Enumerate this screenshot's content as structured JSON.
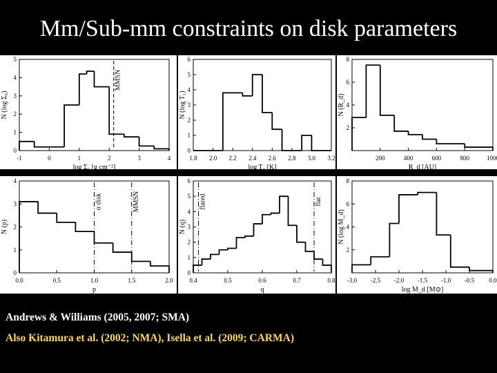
{
  "slide": {
    "title": "Mm/Sub-mm constraints on disk parameters",
    "caption_line1": "Andrews & Williams (2005, 2007; SMA)",
    "caption_line2": "Also Kitamura et al. (2002; NMA), Isella et al. (2009; CARMA)"
  },
  "colors": {
    "background": "#000000",
    "panel": "#ffffff",
    "ink": "#000000",
    "title": "#ffffff",
    "caption1": "#ffffff",
    "caption2": "#ffd84a"
  },
  "chart_data": [
    {
      "type": "histogram",
      "xlabel": "log Σ₀ [g cm⁻²]",
      "ylabel": "N (log Σ₀)",
      "xlim": [
        -1,
        4
      ],
      "ylim": [
        0,
        5
      ],
      "xticks": [
        "-1",
        "0",
        "1",
        "2",
        "3",
        "4"
      ],
      "yticks": [
        "0",
        "1",
        "2",
        "3",
        "4",
        "5"
      ],
      "bins": {
        "edges": [
          -1.0,
          -0.5,
          0.5,
          1.0,
          1.25,
          1.5,
          2.0,
          2.5,
          3.0,
          3.5,
          4.0
        ],
        "counts": [
          0.5,
          0.2,
          2.5,
          4.2,
          4.35,
          3.5,
          0.9,
          0.75,
          0.25,
          0.1
        ]
      },
      "annotations": [
        {
          "label": "MMSN",
          "x": 2.15,
          "style": "dashed"
        }
      ]
    },
    {
      "type": "histogram",
      "xlabel": "log T₁ [K]",
      "ylabel": "N (log T₁)",
      "xlim": [
        1.8,
        3.2
      ],
      "ylim": [
        0,
        6
      ],
      "xticks": [
        "1.8",
        "2.0",
        "2.2",
        "2.4",
        "2.6",
        "2.8",
        "3.0",
        "3.2"
      ],
      "yticks": [
        "0",
        "1",
        "2",
        "3",
        "4",
        "5",
        "6"
      ],
      "bins": {
        "edges": [
          1.8,
          2.1,
          2.3,
          2.4,
          2.5,
          2.6,
          2.7,
          2.9,
          3.0,
          3.2
        ],
        "counts": [
          0,
          3.8,
          3.6,
          5.0,
          2.5,
          1.4,
          0,
          1.0,
          0
        ]
      },
      "annotations": []
    },
    {
      "type": "histogram",
      "xlabel": "R_d [AU]",
      "ylabel": "N (R_d)",
      "xlim": [
        0,
        1000
      ],
      "ylim": [
        0,
        8
      ],
      "xticks": [
        "200",
        "400",
        "600",
        "800",
        "1000"
      ],
      "yticks": [
        "2",
        "4",
        "6",
        "8"
      ],
      "bins": {
        "edges": [
          0,
          100,
          200,
          300,
          400,
          500,
          600,
          800,
          1000
        ],
        "counts": [
          2.9,
          7.5,
          3.1,
          1.7,
          1.4,
          1.0,
          0.6,
          0.3
        ]
      },
      "annotations": []
    },
    {
      "type": "histogram",
      "xlabel": "p",
      "ylabel": "N (p)",
      "xlim": [
        0.0,
        2.0
      ],
      "ylim": [
        0,
        4
      ],
      "xticks": [
        "0.0",
        "0.5",
        "1.0",
        "1.5",
        "2.0"
      ],
      "yticks": [
        "0",
        "1",
        "2",
        "3",
        "4"
      ],
      "bins": {
        "edges": [
          0.0,
          0.25,
          0.5,
          0.75,
          1.0,
          1.25,
          1.5,
          1.75,
          2.0
        ],
        "counts": [
          3.1,
          2.6,
          2.2,
          1.8,
          1.3,
          0.9,
          0.5,
          0.3
        ]
      },
      "annotations": [
        {
          "label": "α disk",
          "x": 1.0,
          "style": "dashdot"
        },
        {
          "label": "MMSN",
          "x": 1.5,
          "style": "dashdot"
        }
      ]
    },
    {
      "type": "histogram",
      "xlabel": "q",
      "ylabel": "N (q)",
      "xlim": [
        0.4,
        0.8
      ],
      "ylim": [
        0,
        6
      ],
      "xticks": [
        "0.4",
        "0.5",
        "0.6",
        "0.7",
        "0.8"
      ],
      "yticks": [
        "0",
        "1",
        "2",
        "3",
        "4",
        "5",
        "6"
      ],
      "bins": {
        "edges": [
          0.4,
          0.425,
          0.45,
          0.475,
          0.5,
          0.525,
          0.55,
          0.575,
          0.6,
          0.625,
          0.65,
          0.675,
          0.7,
          0.725,
          0.75,
          0.775,
          0.8
        ],
        "counts": [
          0.5,
          0.9,
          1.2,
          1.5,
          1.6,
          2.3,
          2.4,
          3.2,
          3.8,
          3.9,
          5.0,
          3.1,
          2.0,
          1.4,
          0.9,
          0.5
        ]
      },
      "annotations": [
        {
          "label": "flared",
          "x": 0.415,
          "style": "dashdot"
        },
        {
          "label": "flat",
          "x": 0.75,
          "style": "dashdot"
        }
      ]
    },
    {
      "type": "histogram",
      "xlabel": "log M_d [M⊙]",
      "ylabel": "N (log M_d)",
      "xlim": [
        -3.0,
        0.0
      ],
      "ylim": [
        0,
        8
      ],
      "xticks": [
        "-3.0",
        "-2.5",
        "-2.0",
        "-1.5",
        "-1.0",
        "-0.5",
        "0.0"
      ],
      "yticks": [
        "2",
        "4",
        "6",
        "8"
      ],
      "bins": {
        "edges": [
          -3.0,
          -2.6,
          -2.2,
          -2.0,
          -1.6,
          -1.2,
          -0.9,
          -0.5,
          0.0
        ],
        "counts": [
          0.7,
          1.4,
          4.3,
          6.8,
          7.0,
          3.3,
          0.5,
          0.2
        ]
      },
      "annotations": []
    }
  ]
}
